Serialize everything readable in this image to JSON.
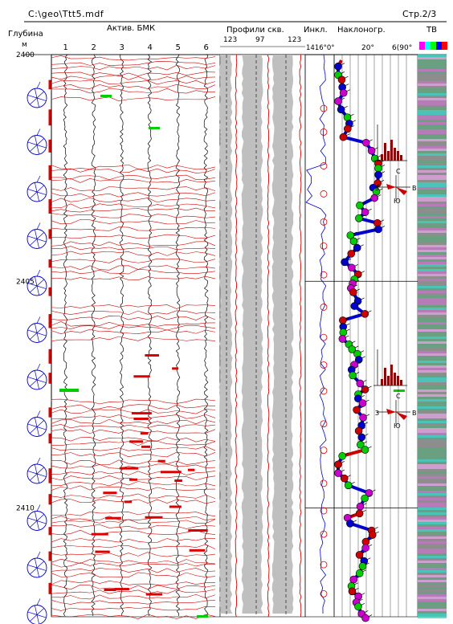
{
  "header": {
    "file_path": "C:\\geo\\Ttt5.mdf",
    "page_label": "Стр.2/3"
  },
  "columns": {
    "depth_title": "Глубина",
    "depth_unit": "м",
    "resistivity_title": "Актив. БМК",
    "caliper_title": "Профили скв.",
    "inclinometry_title": "Инкл.",
    "dipmeter_title": "Наклоногр.",
    "televiewer_title": "ТВ"
  },
  "chart_data": {
    "type": "line",
    "depth_axis": {
      "range": [
        2400,
        2412.4
      ],
      "tick_labels": [
        "2400",
        "2405",
        "2410"
      ],
      "major_depths": [
        2400,
        2405,
        2410
      ]
    },
    "resistivity_track": {
      "xlim": [
        0.5,
        6.5
      ],
      "tick_labels": [
        "1",
        "2",
        "3",
        "4",
        "5",
        "6"
      ],
      "curve_colors": [
        "#000000",
        "#cc0000"
      ],
      "anomaly_color": "#dd0000",
      "highlight_color": "#00cc00"
    },
    "caliper_track": {
      "tick_labels_left": [
        "123",
        "97"
      ],
      "tick_labels_right": [
        "123"
      ],
      "fill_color": "#bfbfbf",
      "line_color": "#cc0000"
    },
    "inclinometry_track": {
      "tick_labels": [
        "1416°0°"
      ],
      "curve_color": "#0000cc"
    },
    "dipmeter_track": {
      "tick_labels": [
        "20°",
        "6(90°"
      ],
      "dip_colors": [
        "#0000cc",
        "#00cc00",
        "#cc0000",
        "#cc00cc"
      ],
      "rose_labels": [
        "С",
        "З",
        "В",
        "Ю"
      ]
    },
    "televiewer_track": {
      "colors": [
        "#888888",
        "#5aa07a",
        "#c070c0",
        "#30d0c0",
        "#dca0dc"
      ]
    }
  }
}
